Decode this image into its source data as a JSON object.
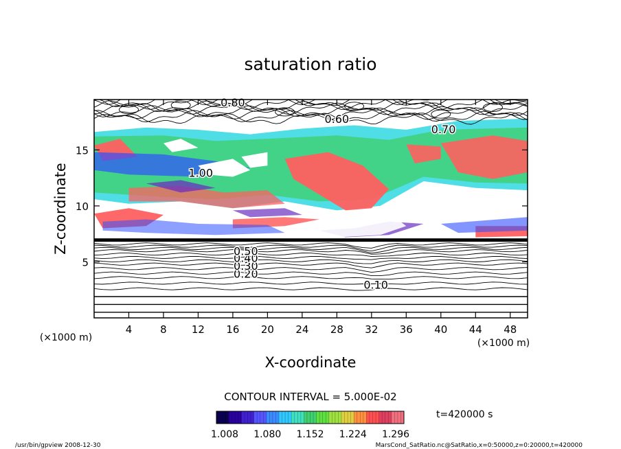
{
  "chart_data": {
    "type": "heatmap",
    "title": "saturation ratio",
    "xlabel": "X-coordinate",
    "ylabel": "Z-coordinate",
    "x_unit_left": "(×1000 m)",
    "x_unit_right": "(×1000 m)",
    "xlim": [
      0,
      50
    ],
    "ylim": [
      0,
      19.5
    ],
    "x_ticks": [
      4,
      8,
      12,
      16,
      20,
      24,
      28,
      32,
      36,
      40,
      44,
      48
    ],
    "y_ticks": [
      5,
      10,
      15
    ],
    "contour_interval_text": "CONTOUR INTERVAL = 5.000E-02",
    "contour_labels": [
      "0.10",
      "0.20",
      "0.30",
      "0.40",
      "0.50",
      "0.60",
      "0.70",
      "0.80",
      "1.00"
    ],
    "colorbar": {
      "ticks": [
        "1.008",
        "1.080",
        "1.152",
        "1.224",
        "1.296"
      ],
      "colors": [
        "#0a0050",
        "#2a00a0",
        "#4020d0",
        "#5555ff",
        "#3a8cff",
        "#30c8ff",
        "#40e0c0",
        "#40d070",
        "#60e040",
        "#a0e040",
        "#e0d040",
        "#ff9040",
        "#ff5050",
        "#e04060",
        "#f07080"
      ]
    },
    "time_label": "t=420000 s",
    "footer_left": "/usr/bin/gpview   2008-12-30",
    "footer_right": "MarsCond_SatRatio.nc@SatRatio,x=0:50000,z=0:20000,t=420000"
  },
  "colors": {
    "red": "#ff6060",
    "green": "#40d070",
    "cyan": "#30d8e0",
    "blue": "#3050ff",
    "purple": "#6a30c0"
  }
}
